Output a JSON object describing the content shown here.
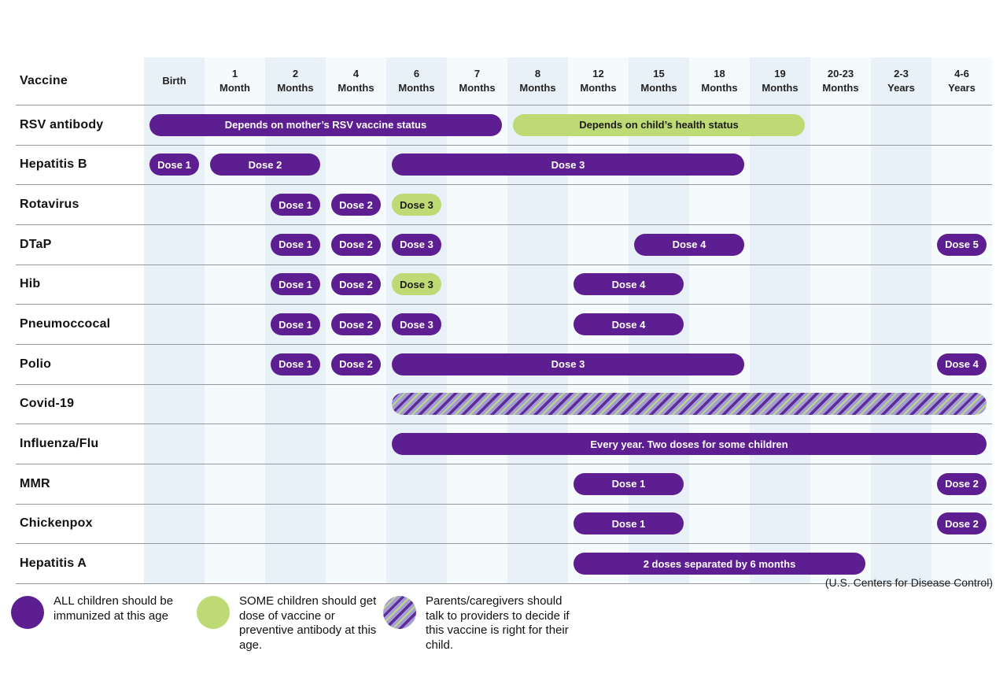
{
  "header": {
    "vaccine_label": "Vaccine"
  },
  "source_attribution": "(U.S. Centers for Disease Control)",
  "colors": {
    "all_purple": "#5c1e90",
    "some_green": "#bdda75",
    "hatch_lavender": "#a39cd6",
    "hatch_purple": "#5f2b94",
    "hatch_green": "#c2d77f",
    "column_stripe_dark": "#e8f1f8",
    "column_stripe_light": "#f5fafd",
    "gridline": "#94999e"
  },
  "legend": {
    "items": [
      {
        "style": "all",
        "text": "ALL children should be immunized at this age"
      },
      {
        "style": "some",
        "text": "SOME children should get dose of vaccine or preventive antibody at this age."
      },
      {
        "style": "discuss",
        "text": "Parents/caregivers should talk to providers to decide if this vaccine is right for their child."
      }
    ]
  },
  "chart_data": {
    "type": "table",
    "columns": [
      "Birth",
      "1 Month",
      "2 Months",
      "4 Months",
      "6 Months",
      "7 Months",
      "8 Months",
      "12 Months",
      "15 Months",
      "18 Months",
      "19 Months",
      "20-23 Months",
      "2-3 Years",
      "4-6 Years"
    ],
    "rows": [
      {
        "vaccine": "RSV antibody",
        "bars": [
          {
            "label": "Depends on mother’s RSV vaccine status",
            "style": "all",
            "from": 1,
            "to": 6
          },
          {
            "label": "Depends on child’s health status",
            "style": "some",
            "from": 7,
            "to": 11
          }
        ]
      },
      {
        "vaccine": "Hepatitis B",
        "bars": [
          {
            "label": "Dose 1",
            "style": "all",
            "from": 1,
            "to": 1
          },
          {
            "label": "Dose 2",
            "style": "all",
            "from": 2,
            "to": 3
          },
          {
            "label": "Dose 3",
            "style": "all",
            "from": 5,
            "to": 10
          }
        ]
      },
      {
        "vaccine": "Rotavirus",
        "bars": [
          {
            "label": "Dose 1",
            "style": "all",
            "from": 3,
            "to": 3
          },
          {
            "label": "Dose 2",
            "style": "all",
            "from": 4,
            "to": 4
          },
          {
            "label": "Dose 3",
            "style": "some",
            "from": 5,
            "to": 5
          }
        ]
      },
      {
        "vaccine": "DTaP",
        "bars": [
          {
            "label": "Dose 1",
            "style": "all",
            "from": 3,
            "to": 3
          },
          {
            "label": "Dose 2",
            "style": "all",
            "from": 4,
            "to": 4
          },
          {
            "label": "Dose 3",
            "style": "all",
            "from": 5,
            "to": 5
          },
          {
            "label": "Dose 4",
            "style": "all",
            "from": 9,
            "to": 10
          },
          {
            "label": "Dose 5",
            "style": "all",
            "from": 14,
            "to": 14
          }
        ]
      },
      {
        "vaccine": "Hib",
        "bars": [
          {
            "label": "Dose 1",
            "style": "all",
            "from": 3,
            "to": 3
          },
          {
            "label": "Dose 2",
            "style": "all",
            "from": 4,
            "to": 4
          },
          {
            "label": "Dose 3",
            "style": "some",
            "from": 5,
            "to": 5
          },
          {
            "label": "Dose 4",
            "style": "all",
            "from": 8,
            "to": 9
          }
        ]
      },
      {
        "vaccine": "Pneumoccocal",
        "bars": [
          {
            "label": "Dose 1",
            "style": "all",
            "from": 3,
            "to": 3
          },
          {
            "label": "Dose 2",
            "style": "all",
            "from": 4,
            "to": 4
          },
          {
            "label": "Dose 3",
            "style": "all",
            "from": 5,
            "to": 5
          },
          {
            "label": "Dose 4",
            "style": "all",
            "from": 8,
            "to": 9
          }
        ]
      },
      {
        "vaccine": "Polio",
        "bars": [
          {
            "label": "Dose 1",
            "style": "all",
            "from": 3,
            "to": 3
          },
          {
            "label": "Dose 2",
            "style": "all",
            "from": 4,
            "to": 4
          },
          {
            "label": "Dose 3",
            "style": "all",
            "from": 5,
            "to": 10
          },
          {
            "label": "Dose 4",
            "style": "all",
            "from": 14,
            "to": 14
          }
        ]
      },
      {
        "vaccine": "Covid-19",
        "bars": [
          {
            "label": "",
            "style": "discuss",
            "from": 5,
            "to": 14
          }
        ]
      },
      {
        "vaccine": "Influenza/Flu",
        "bars": [
          {
            "label": "Every year. Two doses for some children",
            "style": "all",
            "from": 5,
            "to": 14
          }
        ]
      },
      {
        "vaccine": "MMR",
        "bars": [
          {
            "label": "Dose 1",
            "style": "all",
            "from": 8,
            "to": 9
          },
          {
            "label": "Dose 2",
            "style": "all",
            "from": 14,
            "to": 14
          }
        ]
      },
      {
        "vaccine": "Chickenpox",
        "bars": [
          {
            "label": "Dose 1",
            "style": "all",
            "from": 8,
            "to": 9
          },
          {
            "label": "Dose 2",
            "style": "all",
            "from": 14,
            "to": 14
          }
        ]
      },
      {
        "vaccine": "Hepatitis A",
        "bars": [
          {
            "label": "2 doses separated by 6 months",
            "style": "all",
            "from": 8,
            "to": 12
          }
        ]
      }
    ]
  }
}
